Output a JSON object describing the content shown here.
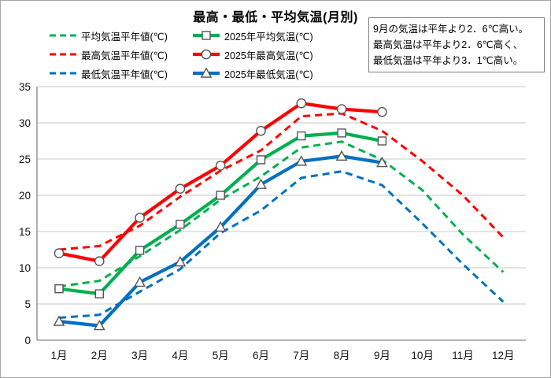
{
  "colors": {
    "red": "#FF0000",
    "green": "#00B050",
    "blue": "#0070C0",
    "grid": "#C9C9C9",
    "axis": "#898989",
    "marker_outline": "#555555",
    "border": "#A6A6A6"
  },
  "title": "最高・最低・平均気温(月別)",
  "annotation": {
    "line1": "9月の気温は平年より2．6℃高い。",
    "line2": "最高気温は平年より2．6℃高く、",
    "line3": "最低気温は平年より3．1℃高い。"
  },
  "legend": {
    "items": [
      {
        "label": "平均気温平年値(℃)",
        "style": "dashed",
        "marker": "none",
        "color": "green"
      },
      {
        "label": "2025年平均気温(℃)",
        "style": "solid",
        "marker": "square",
        "color": "green"
      },
      {
        "label": "最高気温平年値(℃)",
        "style": "dashed",
        "marker": "none",
        "color": "red"
      },
      {
        "label": "2025年最高気温(℃)",
        "style": "solid",
        "marker": "circle",
        "color": "red"
      },
      {
        "label": "最低気温平年値(℃)",
        "style": "dashed",
        "marker": "none",
        "color": "blue"
      },
      {
        "label": "2025年最低気温(℃)",
        "style": "solid",
        "marker": "triangle",
        "color": "blue"
      }
    ]
  },
  "chart_data": {
    "type": "line",
    "title": "最高・最低・平均気温(月別)",
    "categories": [
      "1月",
      "2月",
      "3月",
      "4月",
      "5月",
      "6月",
      "7月",
      "8月",
      "9月",
      "10月",
      "11月",
      "12月"
    ],
    "yticks": [
      0,
      5,
      10,
      15,
      20,
      25,
      30,
      35
    ],
    "ylim": [
      0,
      35
    ],
    "grid": true,
    "legend_position": "top-left",
    "series": [
      {
        "name": "平均気温平年値(℃)",
        "style": "dashed",
        "marker": "none",
        "color": "green",
        "values": [
          7.4,
          8.2,
          11.6,
          15.2,
          19.4,
          22.6,
          26.6,
          27.4,
          24.9,
          20.7,
          14.6,
          9.4
        ]
      },
      {
        "name": "最高気温平年値(℃)",
        "style": "dashed",
        "marker": "none",
        "color": "red",
        "values": [
          12.5,
          13.0,
          15.8,
          19.8,
          23.4,
          26.2,
          30.9,
          31.3,
          28.9,
          24.7,
          20.0,
          14.2
        ]
      },
      {
        "name": "最低気温平年値(℃)",
        "style": "dashed",
        "marker": "none",
        "color": "blue",
        "values": [
          3.1,
          3.5,
          6.7,
          9.8,
          14.8,
          17.9,
          22.4,
          23.3,
          21.4,
          16.1,
          10.5,
          5.3
        ]
      },
      {
        "name": "2025年平均気温(℃)",
        "style": "solid",
        "marker": "square",
        "color": "green",
        "values": [
          7.1,
          6.4,
          12.4,
          16.0,
          20.0,
          24.9,
          28.2,
          28.6,
          27.5
        ]
      },
      {
        "name": "2025年最高気温(℃)",
        "style": "solid",
        "marker": "circle",
        "color": "red",
        "values": [
          12.0,
          10.9,
          16.9,
          20.9,
          24.1,
          28.9,
          32.7,
          31.9,
          31.5
        ]
      },
      {
        "name": "2025年最低気温(℃)",
        "style": "solid",
        "marker": "triangle",
        "color": "blue",
        "values": [
          2.6,
          2.0,
          8.0,
          10.8,
          15.6,
          21.5,
          24.7,
          25.4,
          24.5
        ]
      }
    ]
  }
}
